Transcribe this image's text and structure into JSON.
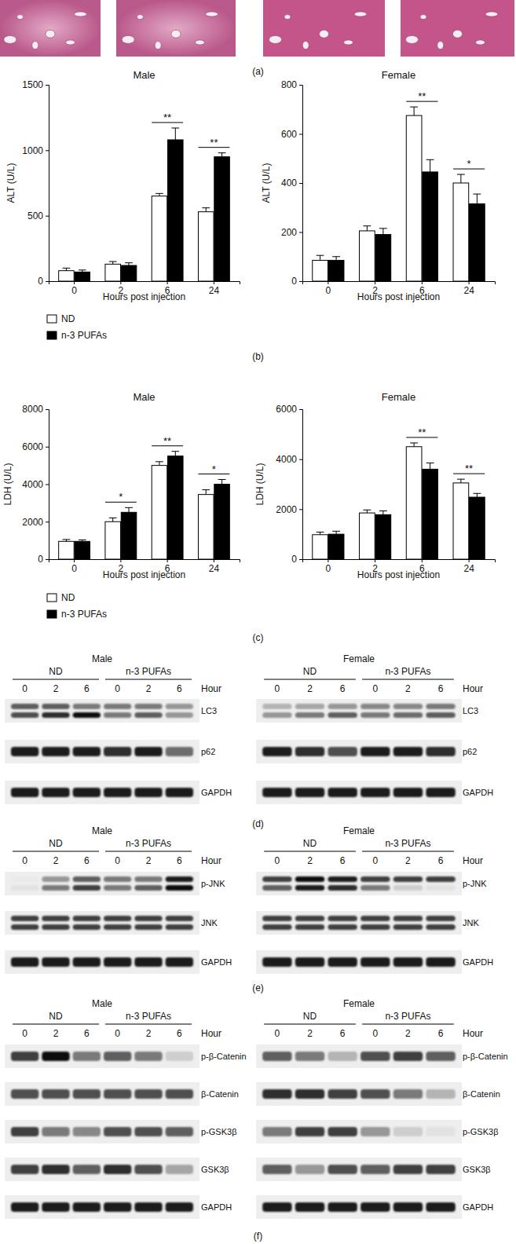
{
  "panel_labels": {
    "a": "(a)",
    "b": "(b)",
    "c": "(c)"
  },
  "chart_data": [
    {
      "type": "bar",
      "title": "Male",
      "y_label": "ALT (U/L)",
      "x_label": "Hours post injection",
      "categories": [
        "0",
        "2",
        "6",
        "24"
      ],
      "series": [
        {
          "name": "ND",
          "color": "#ffffff",
          "values": [
            80,
            130,
            650,
            530
          ],
          "errors": [
            20,
            20,
            20,
            30
          ]
        },
        {
          "name": "n-3 PUFAs",
          "color": "#000000",
          "values": [
            70,
            120,
            1080,
            950
          ],
          "errors": [
            15,
            20,
            90,
            30
          ]
        }
      ],
      "ylim": [
        0,
        1500
      ],
      "yticks": [
        0,
        500,
        1000,
        1500
      ],
      "annotations": [
        {
          "category": "6",
          "text": "**"
        },
        {
          "category": "24",
          "text": "**"
        }
      ],
      "legend": "bottom"
    },
    {
      "type": "bar",
      "title": "Female",
      "y_label": "ALT (U/L)",
      "x_label": "Hours post injection",
      "categories": [
        "0",
        "2",
        "6",
        "24"
      ],
      "series": [
        {
          "color": "#ffffff",
          "values": [
            85,
            205,
            675,
            400
          ],
          "errors": [
            20,
            20,
            35,
            35
          ]
        },
        {
          "color": "#000000",
          "values": [
            85,
            190,
            445,
            315
          ],
          "errors": [
            15,
            25,
            50,
            40
          ]
        }
      ],
      "ylim": [
        0,
        800
      ],
      "yticks": [
        0,
        200,
        400,
        600,
        800
      ],
      "annotations": [
        {
          "category": "6",
          "text": "**"
        },
        {
          "category": "24",
          "text": "*"
        }
      ]
    },
    {
      "type": "bar",
      "title": "Male",
      "y_label": "LDH (U/L)",
      "x_label": "Hours post injection",
      "categories": [
        "0",
        "2",
        "6",
        "24"
      ],
      "series": [
        {
          "name": "ND",
          "color": "#ffffff",
          "values": [
            950,
            2000,
            5000,
            3450
          ],
          "errors": [
            100,
            200,
            200,
            250
          ]
        },
        {
          "name": "n-3 PUFAs",
          "color": "#000000",
          "values": [
            950,
            2500,
            5500,
            4000
          ],
          "errors": [
            80,
            250,
            250,
            250
          ]
        }
      ],
      "ylim": [
        0,
        8000
      ],
      "yticks": [
        0,
        2000,
        4000,
        6000,
        8000
      ],
      "annotations": [
        {
          "category": "2",
          "text": "*"
        },
        {
          "category": "6",
          "text": "**"
        },
        {
          "category": "24",
          "text": "*"
        }
      ],
      "legend": "bottom"
    },
    {
      "type": "bar",
      "title": "Female",
      "y_label": "LDH (U/L)",
      "x_label": "Hours post injection",
      "categories": [
        "0",
        "2",
        "6",
        "24"
      ],
      "series": [
        {
          "color": "#ffffff",
          "values": [
            980,
            1850,
            4500,
            3050
          ],
          "errors": [
            100,
            120,
            150,
            150
          ]
        },
        {
          "color": "#000000",
          "values": [
            1000,
            1780,
            3600,
            2480
          ],
          "errors": [
            120,
            150,
            250,
            150
          ]
        }
      ],
      "ylim": [
        0,
        6000
      ],
      "yticks": [
        0,
        2000,
        4000,
        6000
      ],
      "annotations": [
        {
          "category": "6",
          "text": "**"
        },
        {
          "category": "24",
          "text": "**"
        }
      ]
    }
  ],
  "blots": [
    {
      "label": "(d)",
      "groups": [
        {
          "title": "Male",
          "conditions": [
            "ND",
            "n-3 PUFAs"
          ],
          "hours": [
            "0",
            "2",
            "6",
            "0",
            "2",
            "6"
          ],
          "hour_label": "Hour",
          "rows": [
            {
              "name": "LC3",
              "bands": [
                0.7,
                0.7,
                0.6,
                0.6,
                0.6,
                0.5
              ],
              "lower": [
                0.75,
                0.85,
                0.95,
                0.6,
                0.7,
                0.5
              ]
            },
            {
              "name": "p62",
              "bands": [
                0.9,
                0.9,
                0.9,
                0.85,
                0.9,
                0.65
              ]
            },
            {
              "name": "GAPDH",
              "bands": [
                0.9,
                0.9,
                0.9,
                0.9,
                0.9,
                0.9
              ]
            }
          ]
        },
        {
          "title": "Female",
          "conditions": [
            "ND",
            "n-3 PUFAs"
          ],
          "hours": [
            "0",
            "2",
            "6",
            "0",
            "2",
            "6"
          ],
          "hour_label": "Hour",
          "rows": [
            {
              "name": "LC3",
              "bands": [
                0.4,
                0.45,
                0.5,
                0.55,
                0.55,
                0.6
              ],
              "lower": [
                0.5,
                0.6,
                0.7,
                0.6,
                0.65,
                0.7
              ]
            },
            {
              "name": "p62",
              "bands": [
                0.9,
                0.85,
                0.75,
                0.9,
                0.9,
                0.85
              ]
            },
            {
              "name": "GAPDH",
              "bands": [
                0.9,
                0.9,
                0.9,
                0.9,
                0.9,
                0.9
              ]
            }
          ]
        }
      ]
    },
    {
      "label": "(e)",
      "groups": [
        {
          "title": "Male",
          "conditions": [
            "ND",
            "n-3 PUFAs"
          ],
          "hours": [
            "0",
            "2",
            "6",
            "0",
            "2",
            "6"
          ],
          "hour_label": "Hour",
          "rows": [
            {
              "name": "p-JNK",
              "bands": [
                0.15,
                0.5,
                0.7,
                0.6,
                0.6,
                0.9
              ],
              "lower": [
                0.2,
                0.6,
                0.8,
                0.6,
                0.7,
                0.95
              ]
            },
            {
              "name": "JNK",
              "bands": [
                0.8,
                0.8,
                0.8,
                0.8,
                0.8,
                0.8
              ],
              "lower": [
                0.8,
                0.8,
                0.8,
                0.8,
                0.8,
                0.8
              ]
            },
            {
              "name": "GAPDH",
              "bands": [
                0.9,
                0.9,
                0.9,
                0.9,
                0.9,
                0.9
              ]
            }
          ]
        },
        {
          "title": "Female",
          "conditions": [
            "ND",
            "n-3 PUFAs"
          ],
          "hours": [
            "0",
            "2",
            "6",
            "0",
            "2",
            "6"
          ],
          "hour_label": "Hour",
          "rows": [
            {
              "name": "p-JNK",
              "bands": [
                0.8,
                0.95,
                0.9,
                0.8,
                0.8,
                0.8
              ],
              "lower": [
                0.7,
                0.9,
                0.85,
                0.6,
                0.3,
                0.2
              ]
            },
            {
              "name": "JNK",
              "bands": [
                0.8,
                0.8,
                0.8,
                0.8,
                0.8,
                0.8
              ],
              "lower": [
                0.8,
                0.8,
                0.8,
                0.8,
                0.8,
                0.8
              ]
            },
            {
              "name": "GAPDH",
              "bands": [
                0.9,
                0.9,
                0.9,
                0.9,
                0.9,
                0.9
              ]
            }
          ]
        }
      ]
    },
    {
      "label": "(f)",
      "groups": [
        {
          "title": "Male",
          "conditions": [
            "ND",
            "n-3 PUFAs"
          ],
          "hours": [
            "0",
            "2",
            "6",
            "0",
            "2",
            "6"
          ],
          "hour_label": "Hour",
          "rows": [
            {
              "name": "p-β-Catenin",
              "bands": [
                0.8,
                0.95,
                0.6,
                0.7,
                0.6,
                0.3
              ]
            },
            {
              "name": "β-Catenin",
              "bands": [
                0.75,
                0.75,
                0.75,
                0.75,
                0.75,
                0.75
              ]
            },
            {
              "name": "p-GSK3β",
              "bands": [
                0.8,
                0.6,
                0.55,
                0.75,
                0.75,
                0.7
              ]
            },
            {
              "name": "GSK3β",
              "bands": [
                0.8,
                0.85,
                0.7,
                0.85,
                0.75,
                0.45
              ]
            },
            {
              "name": "GAPDH",
              "bands": [
                0.9,
                0.9,
                0.9,
                0.9,
                0.9,
                0.9
              ]
            }
          ]
        },
        {
          "title": "Female",
          "conditions": [
            "ND",
            "n-3 PUFAs"
          ],
          "hours": [
            "0",
            "2",
            "6",
            "0",
            "2",
            "6"
          ],
          "hour_label": "Hour",
          "rows": [
            {
              "name": "p-β-Catenin",
              "bands": [
                0.7,
                0.6,
                0.4,
                0.75,
                0.8,
                0.7
              ]
            },
            {
              "name": "β-Catenin",
              "bands": [
                0.85,
                0.85,
                0.8,
                0.75,
                0.6,
                0.4
              ]
            },
            {
              "name": "p-GSK3β",
              "bands": [
                0.6,
                0.8,
                0.8,
                0.5,
                0.3,
                0.2
              ]
            },
            {
              "name": "GSK3β",
              "bands": [
                0.7,
                0.5,
                0.75,
                0.7,
                0.8,
                0.8
              ]
            },
            {
              "name": "GAPDH",
              "bands": [
                0.9,
                0.9,
                0.9,
                0.9,
                0.9,
                0.9
              ]
            }
          ]
        }
      ]
    }
  ]
}
